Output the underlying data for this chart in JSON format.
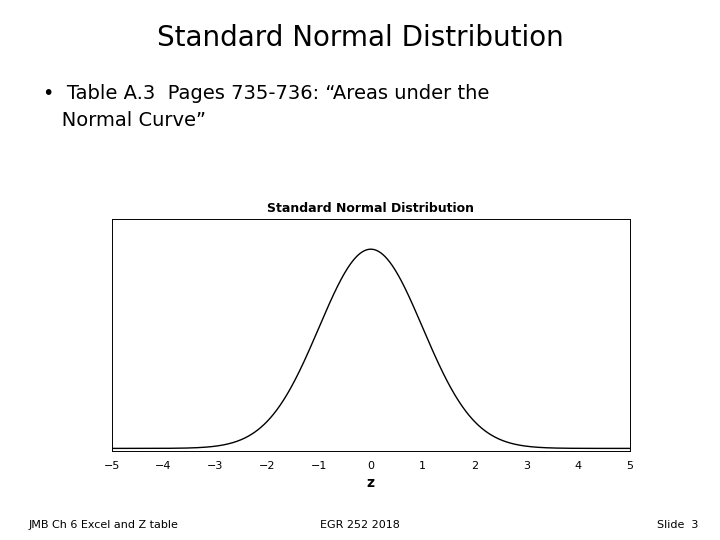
{
  "slide_title": "Standard Normal Distribution",
  "bullet_text_line1": "•  Table A.3  Pages 735-736: “Areas under the",
  "bullet_text_line2": "   Normal Curve”",
  "chart_title": "Standard Normal Distribution",
  "xlabel": "z",
  "x_ticks": [
    -5,
    -4,
    -3,
    -2,
    -1,
    0,
    1,
    2,
    3,
    4,
    5
  ],
  "xlim": [
    -5,
    5
  ],
  "footer_left": "JMB Ch 6 Excel and Z table",
  "footer_center": "EGR 252 2018",
  "footer_right": "Slide  3",
  "background_color": "#ffffff",
  "curve_color": "#000000",
  "title_fontsize": 20,
  "bullet_fontsize": 14,
  "chart_title_fontsize": 9,
  "tick_fontsize": 8,
  "xlabel_fontsize": 10,
  "footer_fontsize": 8
}
